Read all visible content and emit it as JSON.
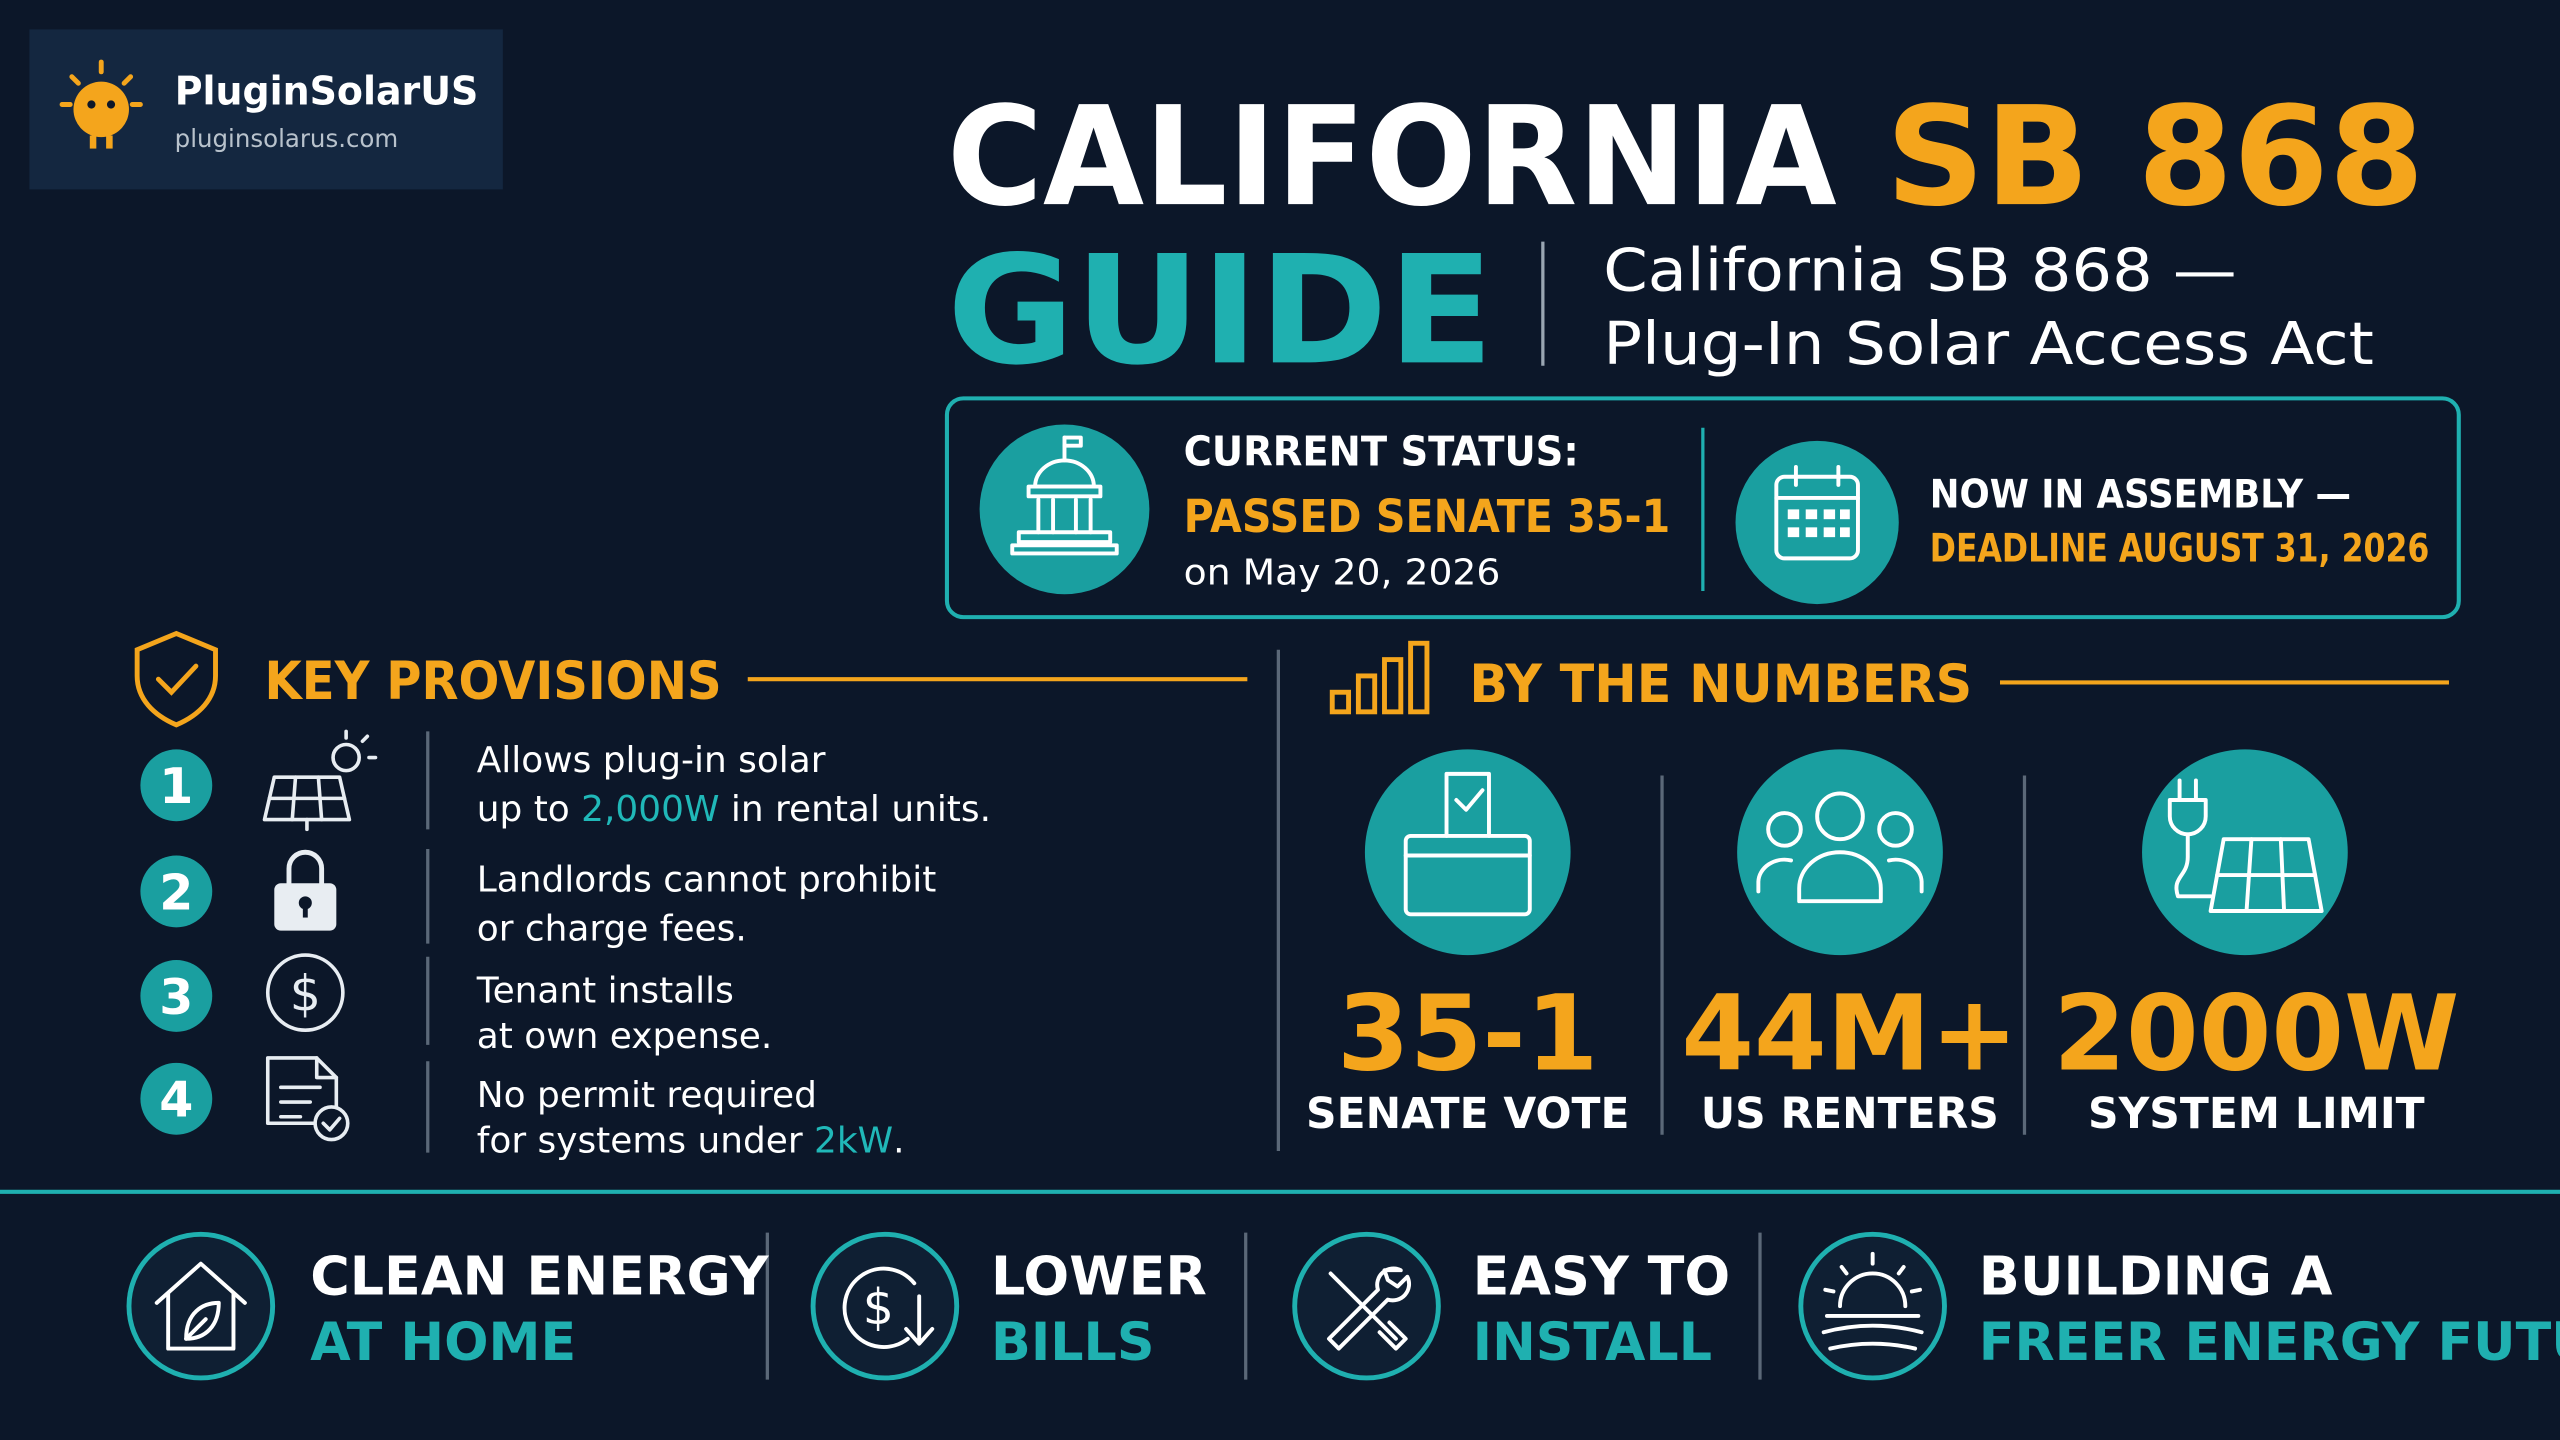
{
  "brand": {
    "name": "PluginSolarUS",
    "url": "pluginsolarus.com"
  },
  "title": {
    "line1": "CALIFORNIA",
    "highlight": "SB 868",
    "line2": "GUIDE",
    "subtitle": [
      "California SB 868 —",
      "Plug-In Solar Access Act"
    ]
  },
  "status": {
    "label": "CURRENT STATUS:",
    "value": "PASSED SENATE 35-1",
    "date": "on May 20, 2026",
    "next": "NOW IN ASSEMBLY —",
    "deadline": "DEADLINE AUGUST 31, 2026"
  },
  "provisions": {
    "heading": "KEY PROVISIONS",
    "items": [
      {
        "number": 1,
        "lines": [
          [
            "Allows plug-in solar"
          ],
          [
            "up to ",
            "2,000W",
            " in rental units."
          ]
        ]
      },
      {
        "number": 2,
        "lines": [
          [
            "Landlords cannot prohibit"
          ],
          [
            "or charge fees."
          ]
        ]
      },
      {
        "number": 3,
        "lines": [
          [
            "Tenant installs"
          ],
          [
            "at own expense."
          ]
        ]
      },
      {
        "number": 4,
        "lines": [
          [
            "No permit required"
          ],
          [
            "for systems under ",
            "2kW",
            "."
          ]
        ]
      }
    ]
  },
  "numbers": {
    "heading": "BY THE NUMBERS",
    "stats": [
      {
        "value": "35-1",
        "label": "SENATE VOTE"
      },
      {
        "value": "44M+",
        "label": "US RENTERS"
      },
      {
        "value": "2000W",
        "label": "SYSTEM LIMIT"
      }
    ]
  },
  "benefits": [
    {
      "lines": [
        "CLEAN ENERGY",
        "AT HOME"
      ]
    },
    {
      "lines": [
        "LOWER",
        "BILLS"
      ]
    },
    {
      "lines": [
        "EASY TO",
        "INSTALL"
      ]
    },
    {
      "lines": [
        "BUILDING A",
        "FREER ENERGY FUTURE"
      ]
    }
  ]
}
